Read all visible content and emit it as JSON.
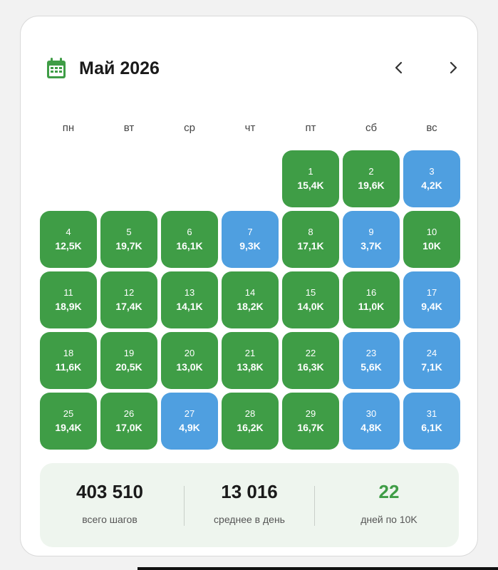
{
  "header": {
    "month_title": "Май 2026",
    "prev_icon": "chevron-left-icon",
    "next_icon": "chevron-right-icon",
    "calendar_icon": "calendar-icon"
  },
  "colors": {
    "goal_met": "#3f9d46",
    "goal_missed": "#4f9fe0",
    "accent_text": "#3f9d46"
  },
  "weekdays": [
    "пн",
    "вт",
    "ср",
    "чт",
    "пт",
    "сб",
    "вс"
  ],
  "first_weekday_index": 4,
  "days": [
    {
      "day": "1",
      "steps": "15,4K",
      "goal": true
    },
    {
      "day": "2",
      "steps": "19,6K",
      "goal": true
    },
    {
      "day": "3",
      "steps": "4,2K",
      "goal": false
    },
    {
      "day": "4",
      "steps": "12,5K",
      "goal": true
    },
    {
      "day": "5",
      "steps": "19,7K",
      "goal": true
    },
    {
      "day": "6",
      "steps": "16,1K",
      "goal": true
    },
    {
      "day": "7",
      "steps": "9,3K",
      "goal": false
    },
    {
      "day": "8",
      "steps": "17,1K",
      "goal": true
    },
    {
      "day": "9",
      "steps": "3,7K",
      "goal": false
    },
    {
      "day": "10",
      "steps": "10K",
      "goal": true
    },
    {
      "day": "11",
      "steps": "18,9K",
      "goal": true
    },
    {
      "day": "12",
      "steps": "17,4K",
      "goal": true
    },
    {
      "day": "13",
      "steps": "14,1K",
      "goal": true
    },
    {
      "day": "14",
      "steps": "18,2K",
      "goal": true
    },
    {
      "day": "15",
      "steps": "14,0K",
      "goal": true
    },
    {
      "day": "16",
      "steps": "11,0K",
      "goal": true
    },
    {
      "day": "17",
      "steps": "9,4K",
      "goal": false
    },
    {
      "day": "18",
      "steps": "11,6K",
      "goal": true
    },
    {
      "day": "19",
      "steps": "20,5K",
      "goal": true
    },
    {
      "day": "20",
      "steps": "13,0K",
      "goal": true
    },
    {
      "day": "21",
      "steps": "13,8K",
      "goal": true
    },
    {
      "day": "22",
      "steps": "16,3K",
      "goal": true
    },
    {
      "day": "23",
      "steps": "5,6K",
      "goal": false
    },
    {
      "day": "24",
      "steps": "7,1K",
      "goal": false
    },
    {
      "day": "25",
      "steps": "19,4K",
      "goal": true
    },
    {
      "day": "26",
      "steps": "17,0K",
      "goal": true
    },
    {
      "day": "27",
      "steps": "4,9K",
      "goal": false
    },
    {
      "day": "28",
      "steps": "16,2K",
      "goal": true
    },
    {
      "day": "29",
      "steps": "16,7K",
      "goal": true
    },
    {
      "day": "30",
      "steps": "4,8K",
      "goal": false
    },
    {
      "day": "31",
      "steps": "6,1K",
      "goal": false
    }
  ],
  "summary": {
    "total_steps_value": "403 510",
    "total_steps_label": "всего шагов",
    "average_value": "13 016",
    "average_label": "среднее в день",
    "goal_days_value": "22",
    "goal_days_label": "дней по 10K"
  }
}
